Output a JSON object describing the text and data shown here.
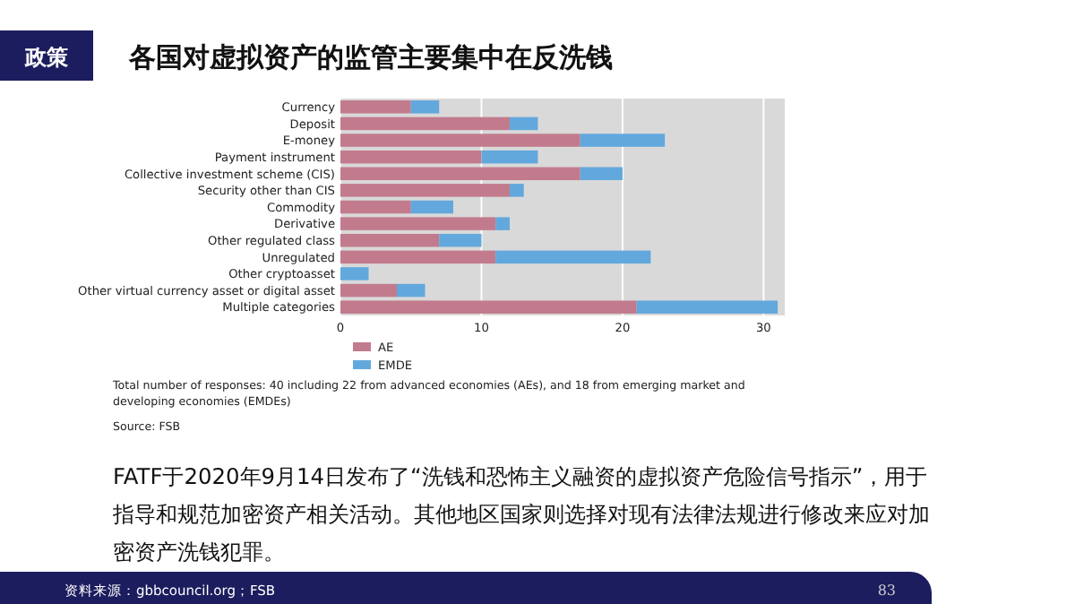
{
  "chart_data": {
    "type": "bar",
    "orientation": "horizontal",
    "stacked": true,
    "title": "各国对虚拟资产的监管主要集中在反洗钱",
    "categories": [
      "Currency",
      "Deposit",
      "E-money",
      "Payment instrument",
      "Collective investment scheme (CIS)",
      "Security other than CIS",
      "Commodity",
      "Derivative",
      "Other regulated class",
      "Unregulated",
      "Other cryptoasset",
      "Other virtual currency asset or digital asset",
      "Multiple categories"
    ],
    "series": [
      {
        "name": "AE",
        "color": "#c27b8d",
        "values": [
          5,
          12,
          17,
          10,
          17,
          12,
          5,
          11,
          7,
          11,
          0,
          4,
          21
        ]
      },
      {
        "name": "EMDE",
        "color": "#62a8dd",
        "values": [
          2,
          2,
          6,
          4,
          3,
          1,
          3,
          1,
          3,
          11,
          2,
          2,
          10
        ]
      }
    ],
    "xlim": [
      0,
      31.5
    ],
    "xticks": [
      0,
      10,
      20,
      30
    ],
    "grid": "x",
    "legend": "bottom",
    "annotations": [
      "政策",
      "Total number of responses: 40 including 22 from advanced economies (AEs), and 18 from emerging market and developing economies (EMDEs)",
      "Source: FSB",
      "FATF于2020年9月14日发布了“洗钱和恐怖主义融资的虚拟资产危险信号指示”，用于指导和规范加密资产相关活动。其他地区国家则选择对现有法律法规进行修改来应对加密资产洗钱犯罪。",
      "资料来源：gbbcouncil.org；FSB",
      "83"
    ]
  }
}
